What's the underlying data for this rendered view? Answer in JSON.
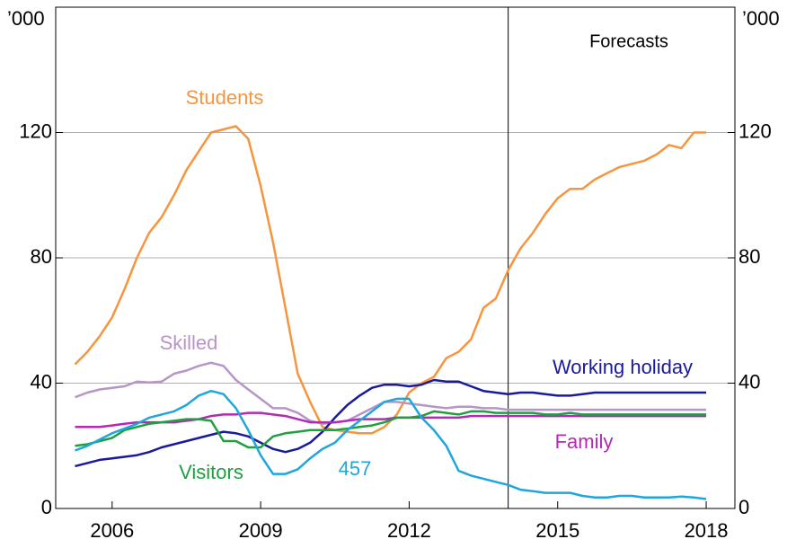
{
  "chart_data": {
    "type": "line",
    "unit_label": "’000",
    "annotation": "Forecasts",
    "forecast_start": 2014,
    "x": [
      2005.25,
      2005.5,
      2005.75,
      2006,
      2006.25,
      2006.5,
      2006.75,
      2007,
      2007.25,
      2007.5,
      2007.75,
      2008,
      2008.25,
      2008.5,
      2008.75,
      2009,
      2009.25,
      2009.5,
      2009.75,
      2010,
      2010.25,
      2010.5,
      2010.75,
      2011,
      2011.25,
      2011.5,
      2011.75,
      2012,
      2012.25,
      2012.5,
      2012.75,
      2013,
      2013.25,
      2013.5,
      2013.75,
      2014,
      2014.25,
      2014.5,
      2014.75,
      2015,
      2015.25,
      2015.5,
      2015.75,
      2016,
      2016.25,
      2016.5,
      2016.75,
      2017,
      2017.25,
      2017.5,
      2017.75,
      2018
    ],
    "xlim": [
      2004.86,
      2018.58
    ],
    "xticks": [
      2006,
      2009,
      2012,
      2015,
      2018
    ],
    "ylim": [
      0,
      160
    ],
    "yticks": [
      0,
      40,
      80,
      120
    ],
    "grid": true,
    "series": [
      {
        "name": "Students",
        "color": "#f7953f",
        "values": [
          46,
          50,
          55,
          61,
          70,
          80,
          88,
          93,
          100,
          108,
          114,
          120,
          121,
          122,
          118,
          103,
          85,
          64,
          43,
          34,
          26,
          25,
          24.5,
          24,
          24,
          26,
          30,
          37,
          40,
          42,
          48,
          50,
          54,
          64,
          67,
          76,
          83,
          88,
          94,
          99,
          102,
          102,
          105,
          107,
          109,
          110,
          111,
          113,
          116,
          115,
          120,
          120
        ]
      },
      {
        "name": "Skilled",
        "color": "#b895c8",
        "values": [
          35.5,
          37,
          38,
          38.5,
          39,
          40.5,
          40.2,
          40.5,
          43,
          44,
          45.5,
          46.5,
          45.5,
          41,
          38,
          35,
          32,
          32,
          30.5,
          28,
          27,
          27.5,
          28,
          30,
          32,
          34,
          34,
          33.5,
          33,
          32.5,
          32,
          32.5,
          32.5,
          32,
          32,
          31.5,
          31.5,
          31.5,
          31.5,
          31.5,
          31.5,
          31.5,
          31.5,
          31.5,
          31.5,
          31.5,
          31.5,
          31.5,
          31.5,
          31.5,
          31.5,
          31.5
        ]
      },
      {
        "name": "Working holiday",
        "color": "#1a1a9a",
        "values": [
          13.5,
          14.5,
          15.5,
          16,
          16.5,
          17,
          18,
          19.5,
          20.5,
          21.5,
          22.5,
          23.5,
          24.5,
          24,
          23,
          21,
          19,
          18,
          19,
          21,
          24.5,
          29,
          33,
          36,
          38.5,
          39.5,
          39.5,
          39,
          39.5,
          41,
          40.5,
          40.5,
          39,
          37.5,
          37,
          36.5,
          37,
          37,
          36.5,
          36,
          36,
          36.5,
          37,
          37,
          37,
          37,
          37,
          37,
          37,
          37,
          37,
          37
        ]
      },
      {
        "name": "Family",
        "color": "#b42ab4",
        "values": [
          26,
          26,
          26,
          26.5,
          27,
          27.5,
          27.5,
          27.5,
          27.5,
          28,
          28.5,
          29.5,
          30,
          30,
          30.5,
          30.5,
          30,
          29.5,
          28.5,
          27.5,
          27.5,
          27.5,
          28,
          28.5,
          28.5,
          28.5,
          29,
          29,
          29,
          29,
          29,
          29,
          29.5,
          29.5,
          29.5,
          29.5,
          29.5,
          29.5,
          29.5,
          29.5,
          29.5,
          29.5,
          29.5,
          29.5,
          29.5,
          29.5,
          29.5,
          29.5,
          29.5,
          29.5,
          29.5,
          29.5
        ]
      },
      {
        "name": "Visitors",
        "color": "#1fa040",
        "values": [
          20,
          20.5,
          21.5,
          22.5,
          25,
          26,
          27,
          27.5,
          28,
          28.5,
          28.5,
          28,
          21.5,
          21.5,
          19.5,
          19.5,
          23,
          24,
          24.5,
          25,
          25,
          25,
          25.5,
          26,
          26.5,
          27.5,
          29,
          29,
          29.5,
          31,
          30.5,
          30,
          31,
          31,
          30.5,
          30.5,
          30.5,
          30.5,
          30,
          30,
          30.5,
          30,
          30,
          30,
          30,
          30,
          30,
          30,
          30,
          30,
          30,
          30
        ]
      },
      {
        "name": "457",
        "color": "#1fa6dc",
        "values": [
          18.5,
          20,
          22,
          24,
          25.5,
          27,
          29,
          30,
          31,
          33,
          36,
          37.5,
          36.5,
          32,
          25,
          17,
          11,
          11,
          12.5,
          16,
          19,
          21,
          25,
          28,
          31,
          34,
          35,
          35,
          29,
          25,
          20,
          12,
          10.5,
          9.5,
          8.5,
          7.5,
          6,
          5.5,
          5,
          5,
          5,
          4,
          3.5,
          3.5,
          4,
          4,
          3.5,
          3.5,
          3.5,
          3.8,
          3.5,
          3
        ]
      }
    ]
  }
}
